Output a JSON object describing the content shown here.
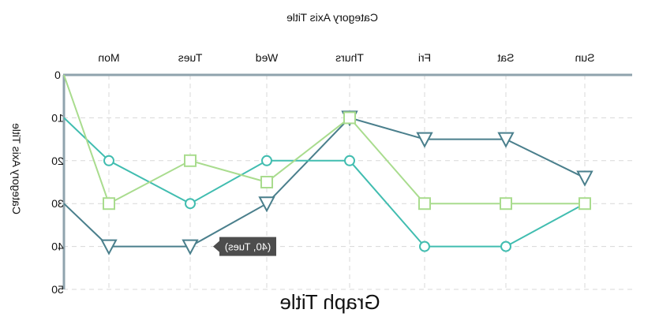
{
  "chart_data": {
    "type": "line",
    "title": "Graph Title",
    "xlabel": "Category Axis Title",
    "ylabel": "Category Axis Title",
    "categories": [
      "Mon",
      "Tues",
      "Wed",
      "Thurs",
      "Fri",
      "Sat",
      "Sun"
    ],
    "ylim": [
      0,
      50
    ],
    "y_ticks": [
      "0",
      "10",
      "20",
      "30",
      "40",
      "50"
    ],
    "y_axis_inverted": true,
    "orientation": "mirrored",
    "grid": true,
    "tooltip": {
      "text": "(40, Tues)",
      "category": "Tues",
      "value": 40
    },
    "series": [
      {
        "marker": "triangle-down",
        "color": "#4a7f8c",
        "values": [
          40,
          40,
          30,
          10,
          15,
          15,
          24
        ]
      },
      {
        "marker": "circle",
        "color": "#41bdb0",
        "values": [
          20,
          30,
          20,
          20,
          40,
          40,
          30
        ]
      },
      {
        "marker": "square",
        "color": "#a9dc8e",
        "values": [
          30,
          20,
          25,
          10,
          30,
          30,
          30
        ]
      }
    ]
  }
}
